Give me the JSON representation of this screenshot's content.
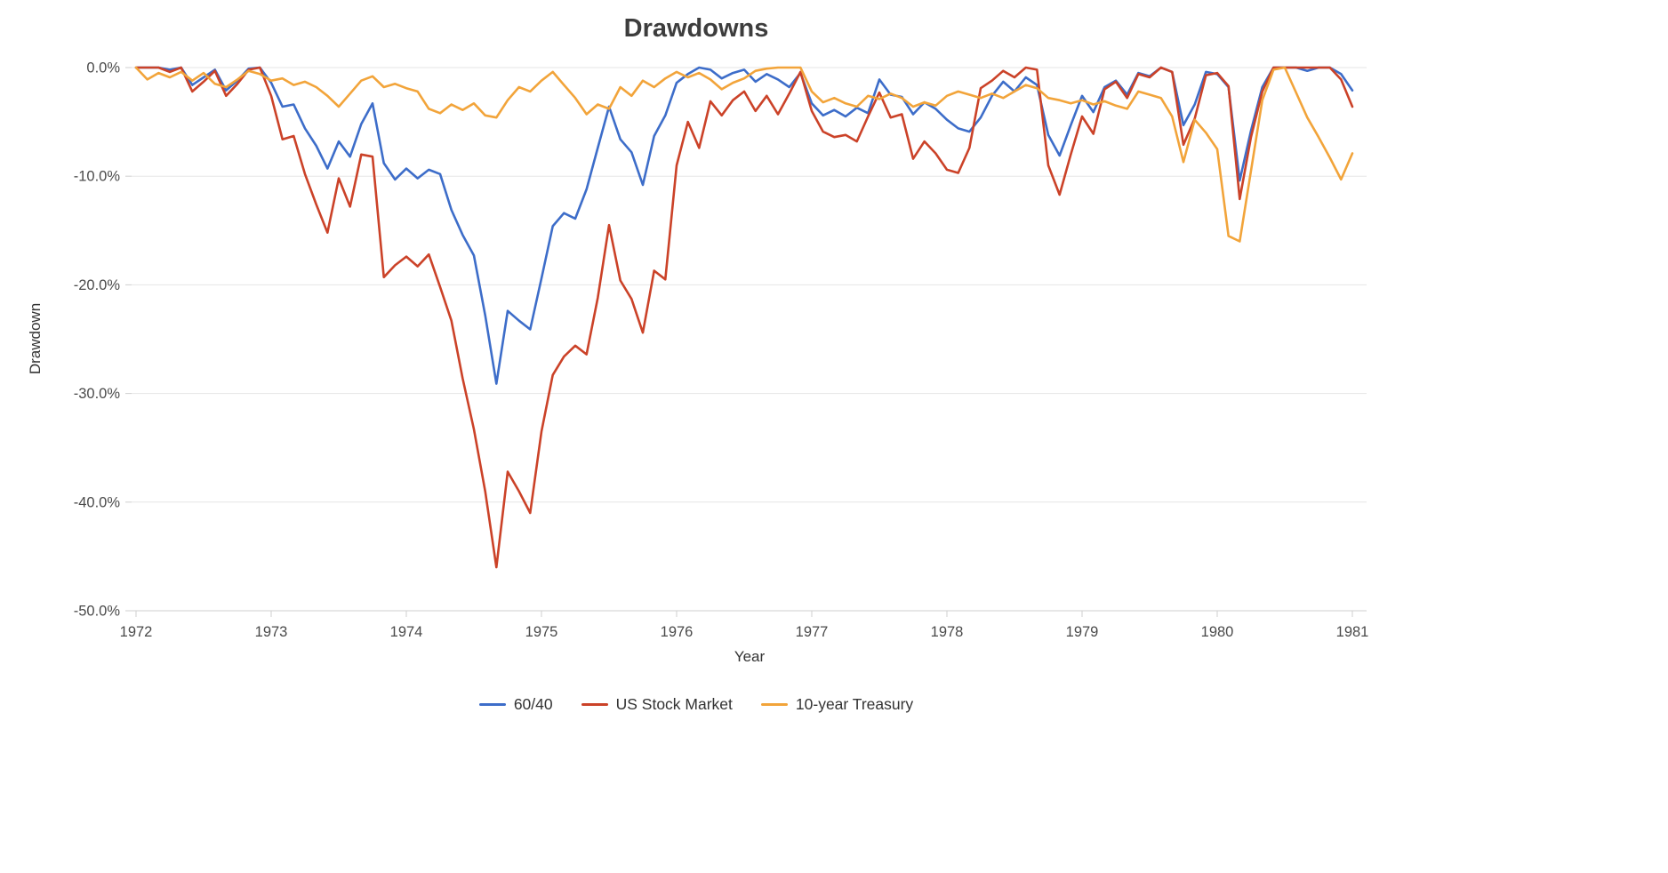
{
  "chart_data": {
    "type": "line",
    "title": "Drawdowns",
    "xlabel": "Year",
    "ylabel": "Drawdown",
    "x_start": "1972-01",
    "x_end": "1981-01",
    "frequency": "monthly",
    "ylim": [
      -50,
      0
    ],
    "grid": true,
    "legend_position": "bottom",
    "yticks": [
      {
        "value": 0,
        "label": "0.0%"
      },
      {
        "value": -10,
        "label": "-10.0%"
      },
      {
        "value": -20,
        "label": "-20.0%"
      },
      {
        "value": -30,
        "label": "-30.0%"
      },
      {
        "value": -40,
        "label": "-40.0%"
      },
      {
        "value": -50,
        "label": "-50.0%"
      }
    ],
    "xticks": [
      {
        "month_index": 0,
        "label": "1972"
      },
      {
        "month_index": 12,
        "label": "1973"
      },
      {
        "month_index": 24,
        "label": "1974"
      },
      {
        "month_index": 36,
        "label": "1975"
      },
      {
        "month_index": 48,
        "label": "1976"
      },
      {
        "month_index": 60,
        "label": "1977"
      },
      {
        "month_index": 72,
        "label": "1978"
      },
      {
        "month_index": 84,
        "label": "1979"
      },
      {
        "month_index": 96,
        "label": "1980"
      },
      {
        "month_index": 108,
        "label": "1981"
      }
    ],
    "series": [
      {
        "id": "sixty-forty",
        "name": "60/40",
        "color": "#3d6dc9",
        "values": [
          0,
          0,
          0,
          -0.2,
          0,
          -1.6,
          -0.9,
          -0.2,
          -2.1,
          -1.2,
          -0.1,
          0,
          -1.4,
          -3.6,
          -3.4,
          -5.6,
          -7.2,
          -9.3,
          -6.8,
          -8.2,
          -5.2,
          -3.3,
          -8.8,
          -10.3,
          -9.3,
          -10.2,
          -9.4,
          -9.8,
          -13.1,
          -15.4,
          -17.3,
          -22.8,
          -29.1,
          -22.4,
          -23.3,
          -24.1,
          -19.4,
          -14.6,
          -13.4,
          -13.9,
          -11.2,
          -7.4,
          -3.6,
          -6.6,
          -7.8,
          -10.8,
          -6.3,
          -4.4,
          -1.4,
          -0.6,
          0,
          -0.2,
          -1.0,
          -0.5,
          -0.2,
          -1.3,
          -0.6,
          -1.1,
          -1.8,
          -0.5,
          -3.3,
          -4.4,
          -3.9,
          -4.5,
          -3.7,
          -4.2,
          -1.1,
          -2.5,
          -2.7,
          -4.3,
          -3.2,
          -3.8,
          -4.8,
          -5.6,
          -5.9,
          -4.6,
          -2.6,
          -1.3,
          -2.2,
          -0.9,
          -1.6,
          -6.2,
          -8.1,
          -5.3,
          -2.6,
          -4.1,
          -1.8,
          -1.2,
          -2.5,
          -0.5,
          -0.8,
          0,
          -0.4,
          -5.3,
          -3.4,
          -0.4,
          -0.6,
          -1.8,
          -10.4,
          -5.8,
          -1.8,
          0,
          0,
          0,
          -0.3,
          0,
          0,
          -0.6,
          -2.1
        ]
      },
      {
        "id": "us-stock-market",
        "name": "US Stock Market",
        "color": "#cb4228",
        "values": [
          0,
          0,
          0,
          -0.4,
          0,
          -2.2,
          -1.3,
          -0.3,
          -2.6,
          -1.5,
          -0.2,
          0,
          -2.6,
          -6.6,
          -6.3,
          -9.8,
          -12.6,
          -15.2,
          -10.2,
          -12.8,
          -8.0,
          -8.2,
          -19.3,
          -18.2,
          -17.4,
          -18.3,
          -17.2,
          -20.2,
          -23.3,
          -28.6,
          -33.3,
          -39.0,
          -46.0,
          -37.2,
          -39.0,
          -41.0,
          -33.5,
          -28.3,
          -26.6,
          -25.6,
          -26.4,
          -21.2,
          -14.5,
          -19.6,
          -21.3,
          -24.4,
          -18.7,
          -19.5,
          -9.0,
          -5.0,
          -7.4,
          -3.1,
          -4.4,
          -3.0,
          -2.2,
          -4.0,
          -2.6,
          -4.3,
          -2.4,
          -0.4,
          -4.0,
          -5.9,
          -6.4,
          -6.2,
          -6.8,
          -4.5,
          -2.3,
          -4.6,
          -4.3,
          -8.4,
          -6.8,
          -7.9,
          -9.4,
          -9.7,
          -7.4,
          -1.9,
          -1.2,
          -0.3,
          -0.9,
          0,
          -0.2,
          -9.0,
          -11.7,
          -8.0,
          -4.5,
          -6.1,
          -2.0,
          -1.3,
          -2.8,
          -0.6,
          -0.9,
          0,
          -0.4,
          -7.1,
          -4.7,
          -0.7,
          -0.5,
          -1.7,
          -12.1,
          -6.4,
          -2.2,
          0,
          0,
          0,
          0,
          0,
          0,
          -1.1,
          -3.6
        ]
      },
      {
        "id": "ten-year-treasury",
        "name": "10-year Treasury",
        "color": "#f2a43a",
        "values": [
          0,
          -1.1,
          -0.5,
          -0.9,
          -0.4,
          -1.2,
          -0.5,
          -1.5,
          -1.8,
          -1.1,
          -0.3,
          -0.6,
          -1.2,
          -1.0,
          -1.6,
          -1.3,
          -1.8,
          -2.6,
          -3.6,
          -2.4,
          -1.2,
          -0.8,
          -1.8,
          -1.5,
          -1.9,
          -2.2,
          -3.8,
          -4.2,
          -3.4,
          -3.9,
          -3.3,
          -4.4,
          -4.6,
          -3.0,
          -1.8,
          -2.2,
          -1.2,
          -0.4,
          -1.6,
          -2.8,
          -4.3,
          -3.4,
          -3.8,
          -1.8,
          -2.6,
          -1.2,
          -1.8,
          -1.0,
          -0.4,
          -0.9,
          -0.5,
          -1.1,
          -2.0,
          -1.4,
          -1.0,
          -0.3,
          -0.1,
          0,
          0,
          0,
          -2.2,
          -3.2,
          -2.8,
          -3.3,
          -3.6,
          -2.6,
          -2.9,
          -2.4,
          -2.8,
          -3.6,
          -3.2,
          -3.5,
          -2.6,
          -2.2,
          -2.5,
          -2.8,
          -2.4,
          -2.8,
          -2.2,
          -1.6,
          -1.9,
          -2.8,
          -3.0,
          -3.3,
          -3.0,
          -3.4,
          -3.1,
          -3.5,
          -3.8,
          -2.2,
          -2.5,
          -2.8,
          -4.5,
          -8.7,
          -4.8,
          -6.0,
          -7.5,
          -15.5,
          -16.0,
          -9.5,
          -3.0,
          -0.2,
          0,
          -2.3,
          -4.6,
          -6.4,
          -8.3,
          -10.3,
          -7.9
        ]
      }
    ],
    "style": {
      "gridline_color": "#e6e6e6",
      "axis_line_color": "#cfcfcf",
      "tick_label_color": "#4a4a4a",
      "title_color": "#3d3d3d"
    }
  }
}
